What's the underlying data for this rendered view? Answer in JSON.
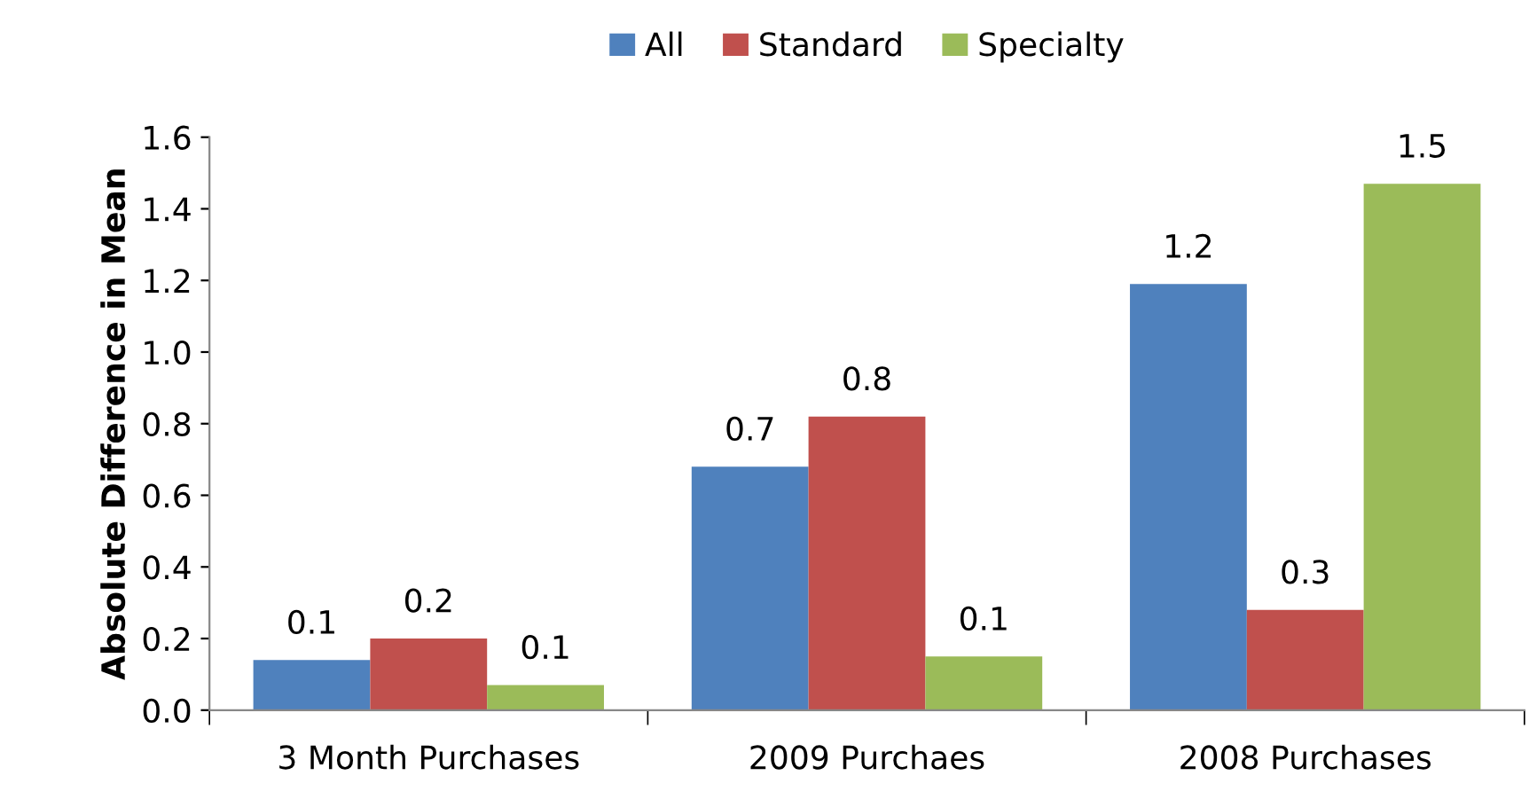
{
  "chart_data": {
    "type": "bar",
    "ylabel": "Absolute Difference in Mean",
    "categories": [
      "3 Month Purchases",
      "2009 Purchaes",
      "2008 Purchases"
    ],
    "series": [
      {
        "name": "All",
        "color": "#4f81bd",
        "values": [
          0.14,
          0.68,
          1.19
        ],
        "value_labels": [
          "0.1",
          "0.7",
          "1.2"
        ]
      },
      {
        "name": "Standard",
        "color": "#c0504d",
        "values": [
          0.2,
          0.82,
          0.28
        ],
        "value_labels": [
          "0.2",
          "0.8",
          "0.3"
        ]
      },
      {
        "name": "Specialty",
        "color": "#9bbb59",
        "values": [
          0.07,
          0.15,
          1.47
        ],
        "value_labels": [
          "0.1",
          "0.1",
          "1.5"
        ]
      }
    ],
    "ylim": [
      0,
      1.6
    ],
    "yticks": [
      {
        "value": 0,
        "label": "0.0"
      },
      {
        "value": 0.2,
        "label": "0.2"
      },
      {
        "value": 0.4,
        "label": "0.4"
      },
      {
        "value": 0.6,
        "label": "0.6"
      },
      {
        "value": 0.8,
        "label": "0.8"
      },
      {
        "value": 1,
        "label": "1.0"
      },
      {
        "value": 1.2,
        "label": "1.2"
      },
      {
        "value": 1.4,
        "label": "1.4"
      },
      {
        "value": 1.6,
        "label": "1.6"
      }
    ],
    "grid": false,
    "legend": "top"
  }
}
